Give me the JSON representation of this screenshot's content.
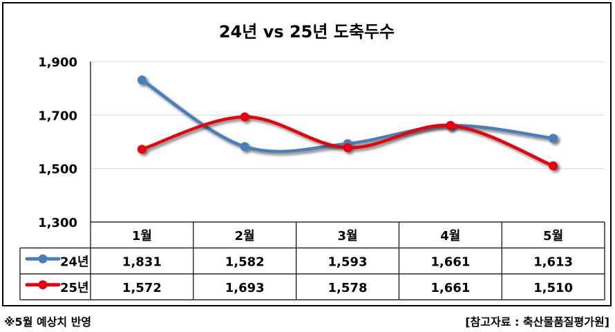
{
  "chart_data": {
    "type": "line",
    "title": "24년 vs 25년 도축두수",
    "categories": [
      "1월",
      "2월",
      "3월",
      "4월",
      "5월"
    ],
    "series": [
      {
        "name": "24년",
        "values": [
          1831,
          1582,
          1593,
          1661,
          1613
        ],
        "color": "#4a7ebb",
        "display": [
          "1,831",
          "1,582",
          "1,593",
          "1,661",
          "1,613"
        ]
      },
      {
        "name": "25년",
        "values": [
          1572,
          1693,
          1578,
          1661,
          1510
        ],
        "color": "#e8000b",
        "display": [
          "1,572",
          "1,693",
          "1,578",
          "1,661",
          "1,510"
        ]
      }
    ],
    "yticks": [
      1300,
      1500,
      1700,
      1900
    ],
    "ytick_labels": [
      "1,300",
      "1,500",
      "1,700",
      "1,900"
    ],
    "ylim": [
      1300,
      1900
    ],
    "grid": true,
    "legend": "data-table"
  },
  "footnote": "※5월 예상치 반영",
  "source": "[참고자료 : 축산물품질평가원]"
}
